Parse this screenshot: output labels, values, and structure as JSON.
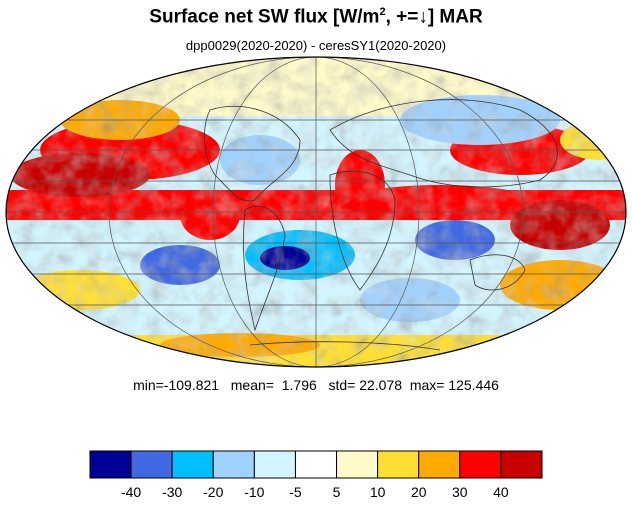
{
  "header": {
    "title_prefix": "Surface net SW flux [W/m",
    "title_sup": "2",
    "title_mid": ", +=",
    "title_arrow": "↓",
    "title_suffix": "]  MAR",
    "subtitle": "dpp0029(2020-2020) - ceresSY1(2020-2020)"
  },
  "stats": {
    "min_label": "min=",
    "min": "-109.821",
    "mean_label": "mean=",
    "mean": "1.796",
    "std_label": "std=",
    "std": "22.078",
    "max_label": "max=",
    "max": "125.446"
  },
  "colorbar": {
    "colors": [
      "#000096",
      "#4169e1",
      "#00bfff",
      "#a0d2ff",
      "#d2f5ff",
      "#ffffff",
      "#fffac8",
      "#ffe032",
      "#ffaa00",
      "#ff0000",
      "#c80000"
    ],
    "tick_labels": [
      "-40",
      "-30",
      "-20",
      "-10",
      "-5",
      "5",
      "10",
      "20",
      "30",
      "40"
    ]
  },
  "map": {
    "projection": "mollweide",
    "field": "difference map, red = positive, blue = negative"
  }
}
